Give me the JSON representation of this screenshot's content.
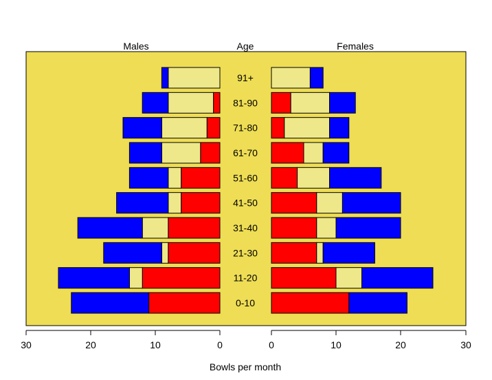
{
  "chart_data": {
    "type": "bar",
    "subtype": "population-pyramid-stacked",
    "titles": {
      "left": "Males",
      "center": "Age",
      "right": "Females"
    },
    "xlabel": "Bowls per month",
    "xlim": [
      0,
      30
    ],
    "ticks": [
      "30",
      "20",
      "10",
      "0",
      "0",
      "10",
      "20",
      "30"
    ],
    "categories": [
      "0-10",
      "11-20",
      "21-30",
      "31-40",
      "41-50",
      "51-60",
      "61-70",
      "71-80",
      "81-90",
      "91+"
    ],
    "colors": {
      "panel": "#EEDD55",
      "red": "#FF0000",
      "yellow": "#EEE88A",
      "blue": "#0000FF",
      "stroke": "#000000"
    },
    "males": {
      "red": [
        11,
        12,
        8,
        8,
        6,
        6,
        3,
        2,
        1,
        0
      ],
      "yellow": [
        0,
        2,
        1,
        4,
        2,
        2,
        6,
        7,
        7,
        8
      ],
      "blue": [
        12,
        11,
        9,
        10,
        8,
        6,
        5,
        6,
        4,
        1
      ]
    },
    "females": {
      "red": [
        12,
        10,
        7,
        7,
        7,
        4,
        5,
        2,
        3,
        0
      ],
      "yellow": [
        0,
        4,
        1,
        3,
        4,
        5,
        3,
        7,
        6,
        6
      ],
      "blue": [
        9,
        11,
        8,
        10,
        9,
        8,
        4,
        3,
        4,
        2
      ]
    }
  }
}
